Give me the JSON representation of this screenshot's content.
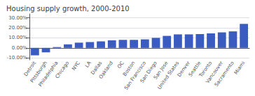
{
  "chart_data": {
    "type": "bar",
    "title": "Housing supply growth, 2000-2010",
    "categories": [
      "Detroit",
      "Pittsburgh",
      "Philadelphia",
      "Chicago",
      "NYC",
      "LA",
      "Dallas",
      "Oakland",
      "OC",
      "Boston",
      "San Francisco",
      "San Diego",
      "San Jose",
      "United States",
      "Denver",
      "Seattle",
      "Toronto",
      "Vancouver",
      "Sacramento",
      "Miami"
    ],
    "values": [
      -7.5,
      -4.5,
      0.8,
      3.5,
      5.2,
      5.8,
      6.5,
      7.5,
      8.0,
      8.0,
      8.5,
      10.0,
      12.0,
      13.5,
      13.5,
      13.8,
      14.5,
      15.5,
      16.5,
      24.0
    ],
    "color": "#3a5bbf",
    "ylim": [
      -12.0,
      34.0
    ],
    "yticks": [
      {
        "value": -10.0,
        "label": "-10.00%"
      },
      {
        "value": 0.0,
        "label": "0.00%"
      },
      {
        "value": 10.0,
        "label": "10.00%"
      },
      {
        "value": 20.0,
        "label": "20.00%"
      },
      {
        "value": 30.0,
        "label": "30.00%"
      }
    ],
    "grid": true
  }
}
